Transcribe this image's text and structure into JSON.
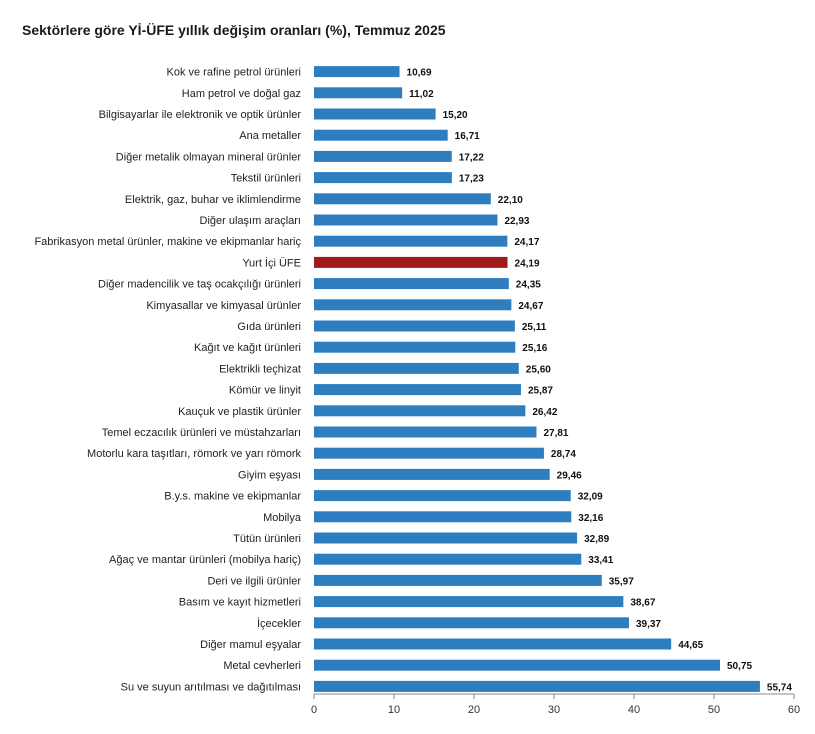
{
  "chart_data": {
    "type": "bar",
    "orientation": "horizontal",
    "title": "Sektörlere göre Yİ-ÜFE yıllık değişim oranları (%), Temmuz 2025",
    "xlabel": "",
    "ylabel": "",
    "xlim": [
      0,
      60
    ],
    "ticks": [
      "0",
      "10",
      "20",
      "30",
      "40",
      "50",
      "60"
    ],
    "grid": false,
    "legend": "none",
    "bar_color": "#2e7ebf",
    "highlight_color": "#a01c1c",
    "highlight_category": "Yurt İçi ÜFE",
    "categories": [
      "Kok ve rafine petrol ürünleri",
      "Ham petrol ve doğal gaz",
      "Bilgisayarlar ile elektronik ve optik ürünler",
      "Ana metaller",
      "Diğer metalik olmayan mineral ürünler",
      "Tekstil ürünleri",
      "Elektrik, gaz, buhar ve iklimlendirme",
      "Diğer ulaşım araçları",
      "Fabrikasyon metal ürünler, makine ve ekipmanlar hariç",
      "Yurt İçi ÜFE",
      "Diğer madencilik ve taş ocakçılığı ürünleri",
      "Kimyasallar ve kimyasal ürünler",
      "Gıda ürünleri",
      "Kağıt ve kağıt ürünleri",
      "Elektrikli teçhizat",
      "Kömür ve linyit",
      "Kauçuk ve plastik ürünler",
      "Temel eczacılık ürünleri ve müstahzarları",
      "Motorlu kara taşıtları, römork ve yarı römork",
      "Giyim eşyası",
      "B.y.s. makine ve ekipmanlar",
      "Mobilya",
      "Tütün ürünleri",
      "Ağaç ve mantar ürünleri (mobilya hariç)",
      "Deri ve ilgili ürünler",
      "Basım ve kayıt hizmetleri",
      "İçecekler",
      "Diğer mamul eşyalar",
      "Metal cevherleri",
      "Su ve suyun arıtılması ve dağıtılması"
    ],
    "values": [
      10.69,
      11.02,
      15.2,
      16.71,
      17.22,
      17.23,
      22.1,
      22.93,
      24.17,
      24.19,
      24.35,
      24.67,
      25.11,
      25.16,
      25.6,
      25.87,
      26.42,
      27.81,
      28.74,
      29.46,
      32.09,
      32.16,
      32.89,
      33.41,
      35.97,
      38.67,
      39.37,
      44.65,
      50.75,
      55.74
    ],
    "value_labels": [
      "10,69",
      "11,02",
      "15,20",
      "16,71",
      "17,22",
      "17,23",
      "22,10",
      "22,93",
      "24,17",
      "24,19",
      "24,35",
      "24,67",
      "25,11",
      "25,16",
      "25,60",
      "25,87",
      "26,42",
      "27,81",
      "28,74",
      "29,46",
      "32,09",
      "32,16",
      "32,89",
      "33,41",
      "35,97",
      "38,67",
      "39,37",
      "44,65",
      "50,75",
      "55,74"
    ]
  }
}
